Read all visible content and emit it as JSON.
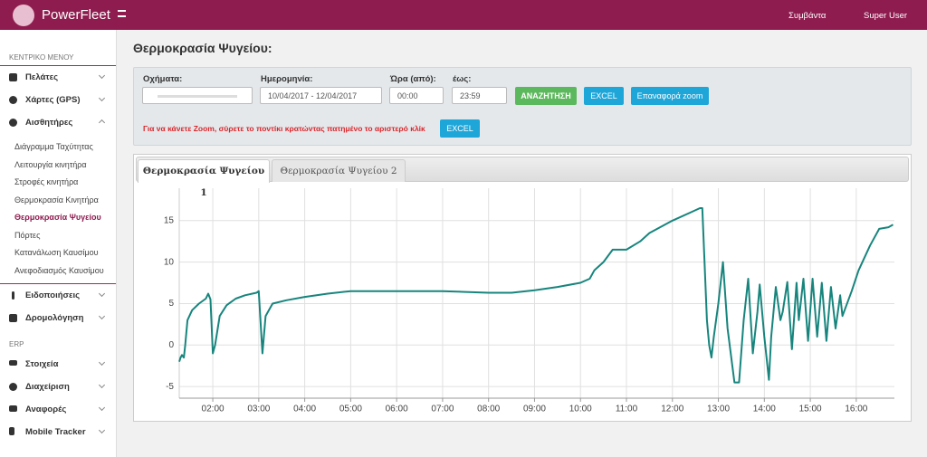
{
  "header": {
    "brand": "PowerFleet",
    "events": "Συμβάντα",
    "user": "Super User"
  },
  "sidebar": {
    "section_title": "ΚΕΝΤΡΙΚΟ ΜΕΝΟΥ",
    "items": [
      "Πελάτες",
      "Χάρτες (GPS)",
      "Αισθητήρες"
    ],
    "submenu": [
      "Διάγραμμα Ταχύτητας",
      "Λειτουργία κινητήρα",
      "Στροφές κινητήρα",
      "Θερμοκρασία Κινητήρα",
      "Θερμοκρασία Ψυγείου",
      "Πόρτες",
      "Κατανάλωση Καυσίμου",
      "Ανεφοδιασμός Καυσίμου"
    ],
    "items2": [
      "Ειδοποιήσεις",
      "Δρομολόγηση"
    ],
    "erp_title": "ERP",
    "erp_items": [
      "Στοιχεία",
      "Διαχείριση",
      "Αναφορές",
      "Mobile Tracker"
    ]
  },
  "page": {
    "title": "Θερμοκρασία Ψυγείου:"
  },
  "form": {
    "vehicles_label": "Οχήματα:",
    "date_label": "Ημερομηνία:",
    "date_value": "10/04/2017 - 12/04/2017",
    "from_label": "Ώρα (από):",
    "from_value": "00:00",
    "to_label": "έως:",
    "to_value": "23:59",
    "search": "ΑΝΑΖΗΤΗΣΗ",
    "excel": "EXCEL",
    "reset_zoom": "Επαναφορά zoom",
    "notice": "Για να κάνετε Zoom, σύρετε το ποντίκι κρατώντας πατημένο το αριστερό κλίκ",
    "excel2": "EXCEL"
  },
  "tabs": [
    "Θερμοκρασία Ψυγείου 1",
    "Θερμοκρασία Ψυγείου 2"
  ],
  "chart_data": {
    "type": "line",
    "color": "#17857d",
    "grid": true,
    "x": [
      1.27,
      1.3,
      1.33,
      1.37,
      1.4,
      1.45,
      1.55,
      1.7,
      1.85,
      1.9,
      1.95,
      2.0,
      2.05,
      2.15,
      2.3,
      2.5,
      2.7,
      2.95,
      3.0,
      3.08,
      3.15,
      3.3,
      3.6,
      4,
      4.5,
      5,
      6,
      7,
      7.5,
      8,
      8.5,
      9,
      9.5,
      10,
      10.2,
      10.3,
      10.5,
      10.7,
      11,
      11.3,
      11.5,
      12,
      12.4,
      12.6,
      12.65,
      12.75,
      12.8,
      12.85,
      12.9,
      13.0,
      13.1,
      13.2,
      13.35,
      13.45,
      13.55,
      13.65,
      13.75,
      13.85,
      13.9,
      14.0,
      14.1,
      14.15,
      14.25,
      14.35,
      14.4,
      14.5,
      14.6,
      14.7,
      14.75,
      14.85,
      14.95,
      15.05,
      15.15,
      15.25,
      15.35,
      15.45,
      15.55,
      15.65,
      15.7,
      15.9,
      16.05,
      16.3,
      16.5,
      16.7,
      16.8
    ],
    "values": [
      -2,
      -1.5,
      -1.2,
      -1.5,
      0,
      3,
      4.2,
      5,
      5.6,
      6.2,
      5.5,
      -1,
      0,
      3.5,
      4.8,
      5.6,
      6,
      6.3,
      6.5,
      -1,
      3.5,
      5,
      5.4,
      5.8,
      6.2,
      6.5,
      6.5,
      6.5,
      6.4,
      6.3,
      6.3,
      6.6,
      7,
      7.5,
      8,
      9,
      10,
      11.5,
      11.5,
      12.5,
      13.5,
      15,
      16,
      16.5,
      16.5,
      3,
      0,
      -1.5,
      1,
      5,
      10,
      2,
      -4.5,
      -4.5,
      3,
      8,
      -1,
      4,
      7.3,
      1,
      -4.2,
      1,
      7,
      3,
      4,
      7.6,
      -0.5,
      7.5,
      3,
      8,
      0.5,
      8,
      1,
      7.5,
      0.5,
      7,
      2,
      6,
      3.5,
      6.5,
      9,
      12,
      14,
      14.2,
      14.5
    ],
    "xlim": [
      1.27,
      16.83
    ],
    "ylim": [
      -6.4,
      18.9
    ],
    "xticks": [
      {
        "value": 2,
        "label": "02:00"
      },
      {
        "value": 3,
        "label": "03:00"
      },
      {
        "value": 4,
        "label": "04:00"
      },
      {
        "value": 5,
        "label": "05:00"
      },
      {
        "value": 6,
        "label": "06:00"
      },
      {
        "value": 7,
        "label": "07:00"
      },
      {
        "value": 8,
        "label": "08:00"
      },
      {
        "value": 9,
        "label": "09:00"
      },
      {
        "value": 10,
        "label": "10:00"
      },
      {
        "value": 11,
        "label": "11:00"
      },
      {
        "value": 12,
        "label": "12:00"
      },
      {
        "value": 13,
        "label": "13:00"
      },
      {
        "value": 14,
        "label": "14:00"
      },
      {
        "value": 15,
        "label": "15:00"
      },
      {
        "value": 16,
        "label": "16:00"
      }
    ],
    "yticks": [
      -5,
      0,
      5,
      10,
      15
    ]
  }
}
